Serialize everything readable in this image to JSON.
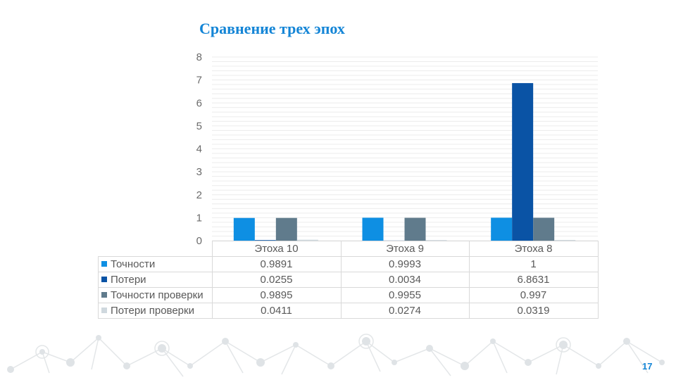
{
  "slide": {
    "title": "Сравнение трех эпох",
    "page_number": "17"
  },
  "chart_data": {
    "type": "bar",
    "title": "",
    "xlabel": "",
    "ylabel": "",
    "ylim": [
      0,
      8
    ],
    "yticks": [
      0,
      1,
      2,
      3,
      4,
      5,
      6,
      7,
      8
    ],
    "categories": [
      "Этоха 10",
      "Этоха 9",
      "Этоха 8"
    ],
    "series": [
      {
        "name": "Точности",
        "color": "#0e8fe3",
        "values": [
          0.9891,
          0.9993,
          1
        ]
      },
      {
        "name": "Потери",
        "color": "#0a53a5",
        "values": [
          0.0255,
          0.0034,
          6.8631
        ]
      },
      {
        "name": "Точности проверки",
        "color": "#607b8c",
        "values": [
          0.9895,
          0.9955,
          0.997
        ]
      },
      {
        "name": "Потери проверки",
        "color": "#cfd8de",
        "values": [
          0.0411,
          0.0274,
          0.0319
        ]
      }
    ],
    "table": {
      "categories": [
        "Этоха 10",
        "Этоха 9",
        "Этоха 8"
      ],
      "rows": [
        {
          "label": "Точности",
          "cells": [
            "0.9891",
            "0.9993",
            "1"
          ]
        },
        {
          "label": "Потери",
          "cells": [
            "0.0255",
            "0.0034",
            "6.8631"
          ]
        },
        {
          "label": "Точности проверки",
          "cells": [
            "0.9895",
            "0.9955",
            "0.997"
          ]
        },
        {
          "label": "Потери проверки",
          "cells": [
            "0.0411",
            "0.0274",
            "0.0319"
          ]
        }
      ]
    },
    "grid": true,
    "legend": "data-table"
  }
}
